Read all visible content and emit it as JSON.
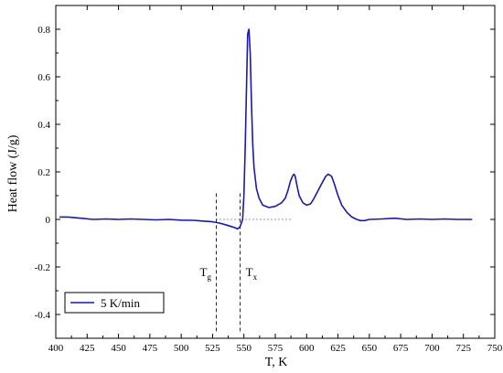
{
  "chart_data": {
    "type": "line",
    "xlabel": "T, K",
    "ylabel": "Heat flow (J/g)",
    "xlim": [
      400,
      750
    ],
    "ylim": [
      -0.5,
      0.9
    ],
    "x_ticks": [
      400,
      425,
      450,
      475,
      500,
      525,
      550,
      575,
      600,
      625,
      650,
      675,
      700,
      725,
      750
    ],
    "y_ticks": [
      -0.4,
      -0.2,
      0,
      0.2,
      0.4,
      0.6,
      0.8
    ],
    "y_tick_labels": [
      "-0.4",
      "-0.2",
      "0",
      "0.2",
      "0.4",
      "0.6",
      "0.8"
    ],
    "legend_position": "bottom-left",
    "series": [
      {
        "name": "5 K/min",
        "color": "#1a1aa8",
        "x": [
          403,
          410,
          420,
          430,
          440,
          450,
          460,
          470,
          480,
          490,
          500,
          510,
          515,
          520,
          525,
          530,
          535,
          540,
          543,
          545,
          547,
          549,
          550,
          551,
          552,
          553,
          554,
          555,
          556,
          557,
          558,
          560,
          562,
          565,
          570,
          575,
          580,
          583,
          585,
          587,
          589,
          590,
          591,
          592,
          594,
          597,
          600,
          603,
          605,
          608,
          612,
          615,
          617,
          619,
          620,
          622,
          625,
          628,
          632,
          636,
          640,
          643,
          646,
          650,
          660,
          670,
          680,
          690,
          700,
          710,
          720,
          732
        ],
        "y": [
          0.01,
          0.01,
          0.005,
          0.0,
          0.002,
          0.0,
          0.002,
          0.0,
          -0.002,
          0.0,
          -0.003,
          -0.004,
          -0.006,
          -0.008,
          -0.01,
          -0.015,
          -0.022,
          -0.03,
          -0.035,
          -0.04,
          -0.03,
          0.0,
          0.1,
          0.3,
          0.55,
          0.78,
          0.8,
          0.7,
          0.5,
          0.32,
          0.22,
          0.13,
          0.09,
          0.06,
          0.05,
          0.055,
          0.07,
          0.09,
          0.12,
          0.16,
          0.185,
          0.19,
          0.18,
          0.15,
          0.1,
          0.07,
          0.06,
          0.065,
          0.08,
          0.11,
          0.15,
          0.18,
          0.19,
          0.185,
          0.18,
          0.15,
          0.1,
          0.06,
          0.03,
          0.01,
          0.0,
          -0.005,
          -0.005,
          0.0,
          0.002,
          0.005,
          0.0,
          0.002,
          0.0,
          0.002,
          0.0,
          0.0
        ]
      }
    ],
    "annotations": [
      {
        "label": "T",
        "sub": "g",
        "x": 528
      },
      {
        "label": "T",
        "sub": "x",
        "x": 547
      }
    ]
  }
}
